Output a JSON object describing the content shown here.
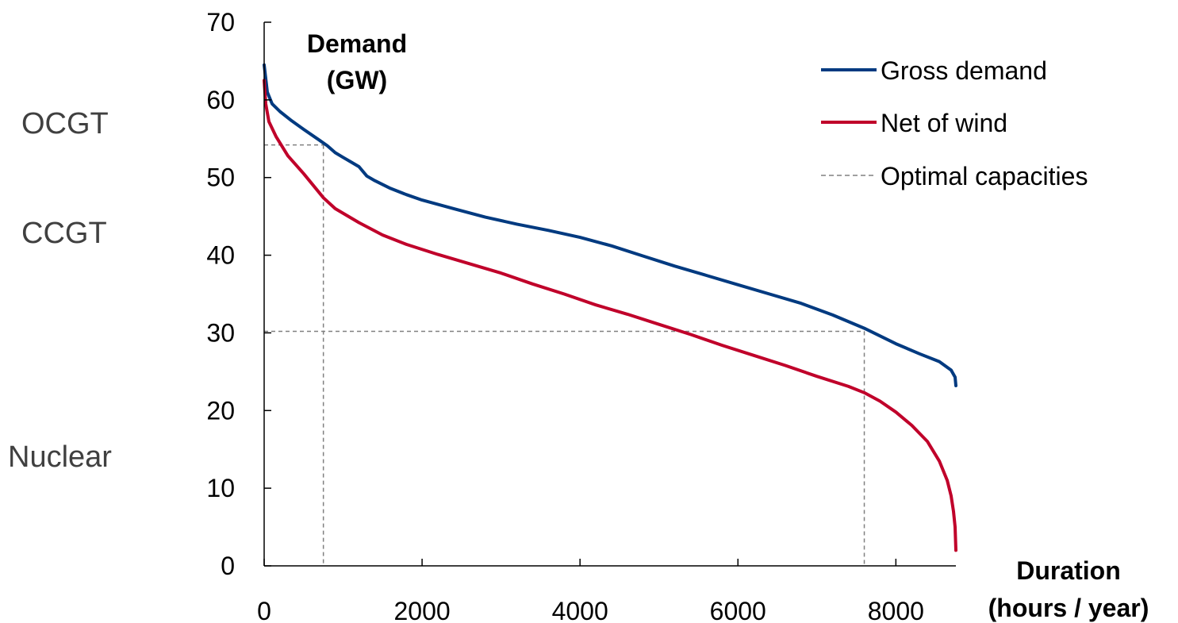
{
  "chart_data": {
    "type": "line",
    "ylabel_lines": [
      "Demand",
      "(GW)"
    ],
    "xlabel_lines": [
      "Duration",
      "(hours / year)"
    ],
    "xlim": [
      0,
      8760
    ],
    "ylim": [
      0,
      70
    ],
    "xticks": [
      "0",
      "2000",
      "4000",
      "6000",
      "8000"
    ],
    "xtick_values": [
      0,
      2000,
      4000,
      6000,
      8000
    ],
    "yticks": [
      "0",
      "10",
      "20",
      "30",
      "40",
      "50",
      "60",
      "70"
    ],
    "ytick_values": [
      0,
      10,
      20,
      30,
      40,
      50,
      60,
      70
    ],
    "grid": false,
    "legend_position": "top-right",
    "series": [
      {
        "name": "Gross demand",
        "color": "#003A80",
        "style": "solid",
        "points": [
          [
            0,
            64.5
          ],
          [
            40,
            61
          ],
          [
            100,
            59.5
          ],
          [
            200,
            58.5
          ],
          [
            350,
            57.3
          ],
          [
            500,
            56.2
          ],
          [
            700,
            54.8
          ],
          [
            800,
            54.1
          ],
          [
            900,
            53.2
          ],
          [
            1000,
            52.6
          ],
          [
            1100,
            52
          ],
          [
            1200,
            51.4
          ],
          [
            1300,
            50.2
          ],
          [
            1400,
            49.6
          ],
          [
            1600,
            48.6
          ],
          [
            1800,
            47.8
          ],
          [
            2000,
            47.1
          ],
          [
            2400,
            46
          ],
          [
            2800,
            44.9
          ],
          [
            3200,
            44
          ],
          [
            3600,
            43.2
          ],
          [
            4000,
            42.3
          ],
          [
            4400,
            41.2
          ],
          [
            4800,
            39.9
          ],
          [
            5200,
            38.6
          ],
          [
            5600,
            37.4
          ],
          [
            6000,
            36.2
          ],
          [
            6400,
            35
          ],
          [
            6800,
            33.8
          ],
          [
            7200,
            32.3
          ],
          [
            7600,
            30.6
          ],
          [
            8000,
            28.6
          ],
          [
            8300,
            27.3
          ],
          [
            8550,
            26.3
          ],
          [
            8700,
            25.2
          ],
          [
            8750,
            24.3
          ],
          [
            8760,
            23.2
          ]
        ]
      },
      {
        "name": "Net of wind",
        "color": "#C0002A",
        "style": "solid",
        "points": [
          [
            0,
            62.5
          ],
          [
            20,
            59.5
          ],
          [
            60,
            57.2
          ],
          [
            150,
            55.3
          ],
          [
            300,
            52.8
          ],
          [
            500,
            50.5
          ],
          [
            750,
            47.4
          ],
          [
            900,
            46
          ],
          [
            1200,
            44.2
          ],
          [
            1500,
            42.6
          ],
          [
            1800,
            41.4
          ],
          [
            2200,
            40.1
          ],
          [
            2600,
            38.9
          ],
          [
            3000,
            37.7
          ],
          [
            3400,
            36.3
          ],
          [
            3800,
            35
          ],
          [
            4200,
            33.6
          ],
          [
            4600,
            32.4
          ],
          [
            5000,
            31.1
          ],
          [
            5400,
            29.8
          ],
          [
            5800,
            28.4
          ],
          [
            6200,
            27.1
          ],
          [
            6600,
            25.8
          ],
          [
            7000,
            24.4
          ],
          [
            7400,
            23.1
          ],
          [
            7600,
            22.3
          ],
          [
            7800,
            21.2
          ],
          [
            8000,
            19.8
          ],
          [
            8200,
            18.1
          ],
          [
            8400,
            16
          ],
          [
            8550,
            13.5
          ],
          [
            8650,
            11
          ],
          [
            8700,
            9
          ],
          [
            8730,
            7
          ],
          [
            8750,
            5
          ],
          [
            8760,
            2
          ]
        ]
      },
      {
        "name": "Optimal capacities",
        "color": "#808080",
        "style": "dashed",
        "points": []
      }
    ],
    "guides": [
      {
        "capacity_gw": 54.2,
        "duration_hours": 750
      },
      {
        "capacity_gw": 30.2,
        "duration_hours": 7600
      }
    ],
    "annotations": [
      "OCGT",
      "CCGT",
      "Nuclear"
    ]
  }
}
